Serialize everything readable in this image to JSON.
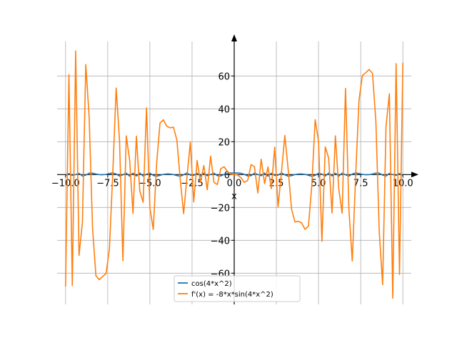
{
  "chart_data": {
    "type": "line",
    "xlabel": "x",
    "ylabel": "",
    "xlim": [
      -10.5,
      10.5
    ],
    "ylim": [
      -79,
      81
    ],
    "x_ticks": [
      -10,
      -7.5,
      -5,
      -2.5,
      0,
      2.5,
      5,
      7.5,
      10
    ],
    "x_tick_labels": [
      "−10.0",
      "−7.5",
      "−5.0",
      "−2.5",
      "0.0",
      "2.5",
      "5.0",
      "7.5",
      "10.0"
    ],
    "y_ticks": [
      -60,
      -40,
      -20,
      0,
      20,
      40,
      60
    ],
    "y_tick_labels": [
      "−60",
      "−40",
      "−20",
      "0",
      "20",
      "40",
      "60"
    ],
    "grid": true,
    "legend_position": "lower-center",
    "series": [
      {
        "name": "cos(4*x^2)",
        "color": "#1f77b4",
        "expression": "cos(4*x^2)",
        "x_range": [
          -10,
          10
        ],
        "samples": 101
      },
      {
        "name": "f'(x) = -8*x*sin(4*x^2)",
        "color": "#ff7f0e",
        "expression": "-8*x*sin(4*x^2)",
        "x_range": [
          -10,
          10
        ],
        "samples": 101
      }
    ]
  }
}
